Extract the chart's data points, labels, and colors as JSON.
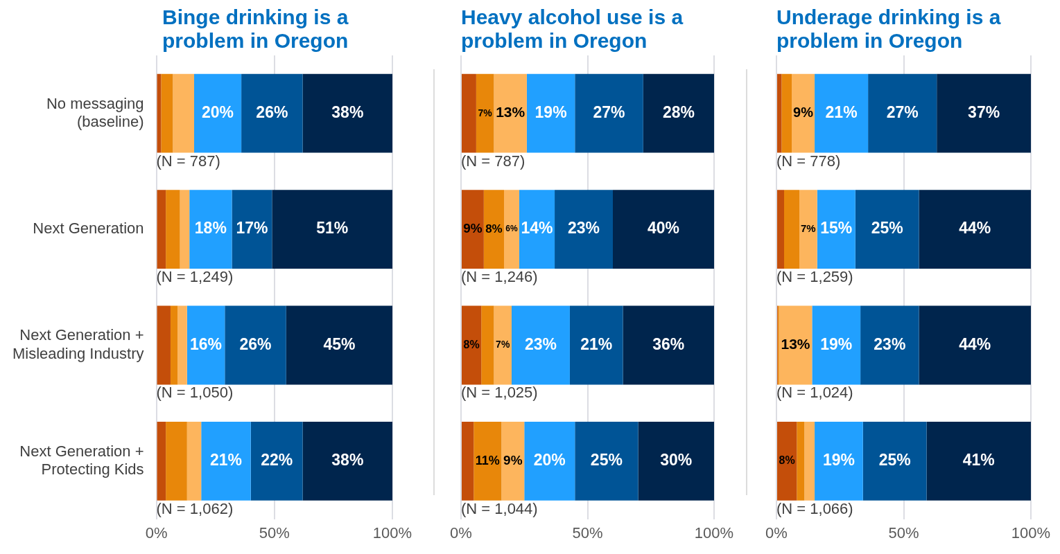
{
  "chart_data": [
    {
      "type": "bar",
      "orientation": "horizontal",
      "stacked": true,
      "title": "Binge drinking is a problem in Oregon",
      "categories": [
        "No messaging (baseline)",
        "Next Generation",
        "Next Generation + Misleading Industry",
        "Next Generation + Protecting Kids"
      ],
      "series": [
        {
          "color": "#c44e0a",
          "values": [
            2,
            4,
            6,
            4
          ],
          "value_labels": [
            null,
            null,
            null,
            null
          ]
        },
        {
          "color": "#e8870a",
          "values": [
            5,
            6,
            3,
            9
          ],
          "value_labels": [
            null,
            null,
            null,
            null
          ]
        },
        {
          "color": "#fdb55d",
          "values": [
            9,
            4,
            4,
            6
          ],
          "value_labels": [
            null,
            null,
            null,
            null
          ]
        },
        {
          "color": "#21a0ff",
          "values": [
            20,
            18,
            16,
            21
          ],
          "value_labels": [
            "20%",
            "18%",
            "16%",
            "21%"
          ]
        },
        {
          "color": "#005496",
          "values": [
            26,
            17,
            26,
            22
          ],
          "value_labels": [
            "26%",
            "17%",
            "26%",
            "22%"
          ]
        },
        {
          "color": "#00254d",
          "values": [
            38,
            51,
            45,
            38
          ],
          "value_labels": [
            "38%",
            "51%",
            "45%",
            "38%"
          ]
        }
      ],
      "xlim": [
        0,
        100
      ],
      "xticks": [
        {
          "value": 0,
          "label": "0%"
        },
        {
          "value": 50,
          "label": "50%"
        },
        {
          "value": 100,
          "label": "100%"
        }
      ],
      "grid": "x",
      "annotations": [
        "(N = 787)",
        "(N = 1,249)",
        "(N = 1,050)",
        "(N = 1,062)"
      ]
    },
    {
      "type": "bar",
      "orientation": "horizontal",
      "stacked": true,
      "title": "Heavy alcohol use is a problem in Oregon",
      "categories": [
        null,
        null,
        null,
        null
      ],
      "series": [
        {
          "color": "#c44e0a",
          "values": [
            6,
            9,
            8,
            5
          ],
          "value_labels": [
            null,
            "9%",
            "8%",
            null
          ]
        },
        {
          "color": "#e8870a",
          "values": [
            7,
            8,
            5,
            11
          ],
          "value_labels": [
            "7%",
            "8%",
            null,
            "11%"
          ]
        },
        {
          "color": "#fdb55d",
          "values": [
            13,
            6,
            7,
            9
          ],
          "value_labels": [
            "13%",
            "6%",
            "7%",
            "9%"
          ]
        },
        {
          "color": "#21a0ff",
          "values": [
            19,
            14,
            23,
            20
          ],
          "value_labels": [
            "19%",
            "14%",
            "23%",
            "20%"
          ]
        },
        {
          "color": "#005496",
          "values": [
            27,
            23,
            21,
            25
          ],
          "value_labels": [
            "27%",
            "23%",
            "21%",
            "25%"
          ]
        },
        {
          "color": "#00254d",
          "values": [
            28,
            40,
            36,
            30
          ],
          "value_labels": [
            "28%",
            "40%",
            "36%",
            "30%"
          ]
        }
      ],
      "xlim": [
        0,
        100
      ],
      "xticks": [
        {
          "value": 0,
          "label": "0%"
        },
        {
          "value": 50,
          "label": "50%"
        },
        {
          "value": 100,
          "label": "100%"
        }
      ],
      "grid": "x",
      "tick_labels": "x",
      "annotations": [
        "(N = 787)",
        "(N = 1,246)",
        "(N = 1,025)",
        "(N = 1,044)"
      ]
    },
    {
      "type": "bar",
      "orientation": "horizontal",
      "stacked": true,
      "title": "Underage drinking is a problem in Oregon",
      "categories": [
        null,
        null,
        null,
        null
      ],
      "series": [
        {
          "color": "#c44e0a",
          "values": [
            2,
            3,
            0.5,
            8
          ],
          "value_labels": [
            null,
            null,
            null,
            "8%"
          ]
        },
        {
          "color": "#e8870a",
          "values": [
            4,
            6,
            0.5,
            3
          ],
          "value_labels": [
            null,
            null,
            null,
            null
          ]
        },
        {
          "color": "#fdb55d",
          "values": [
            9,
            7,
            13,
            4
          ],
          "value_labels": [
            "9%",
            "7%",
            "13%",
            null
          ]
        },
        {
          "color": "#21a0ff",
          "values": [
            21,
            15,
            19,
            19
          ],
          "value_labels": [
            "21%",
            "15%",
            "19%",
            "19%"
          ]
        },
        {
          "color": "#005496",
          "values": [
            27,
            25,
            23,
            25
          ],
          "value_labels": [
            "27%",
            "25%",
            "23%",
            "25%"
          ]
        },
        {
          "color": "#00254d",
          "values": [
            37,
            44,
            44,
            41
          ],
          "value_labels": [
            "37%",
            "44%",
            "44%",
            "41%"
          ]
        }
      ],
      "xlim": [
        0,
        100
      ],
      "xticks": [
        {
          "value": 0,
          "label": "0%"
        },
        {
          "value": 50,
          "label": "50%"
        },
        {
          "value": 100,
          "label": "100%"
        }
      ],
      "grid": "x",
      "tick_labels": "x",
      "annotations": [
        "(N = 778)",
        "(N = 1,259)",
        "(N = 1,024)",
        "(N = 1,066)"
      ]
    }
  ]
}
